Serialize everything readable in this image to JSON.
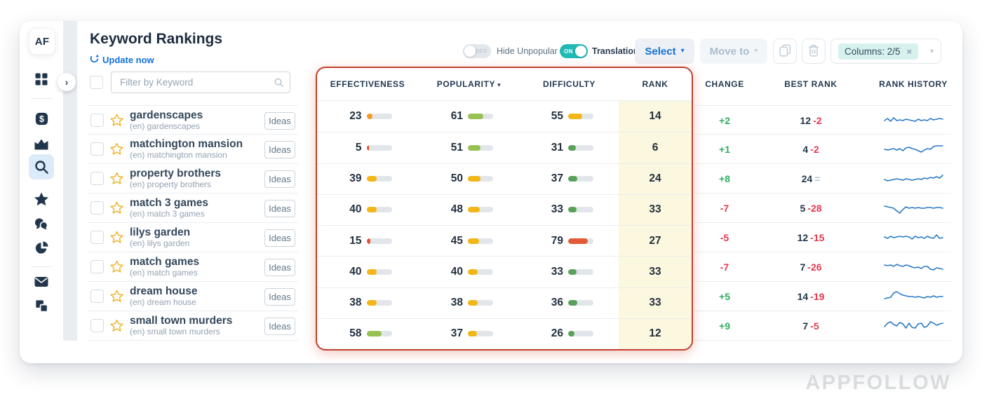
{
  "app": {
    "logo": "AF",
    "watermark": "APPFOLLOW"
  },
  "sidebar": {
    "icons": [
      "grid-icon",
      "revenue-icon",
      "chart-icon",
      "search-icon",
      "star-icon",
      "reviews-icon",
      "pie-icon",
      "mail-icon",
      "integrations-icon"
    ],
    "active_icon": "search-icon"
  },
  "header": {
    "title": "Keyword Rankings",
    "update_label": "Update now"
  },
  "toolbar": {
    "hide_unpopular": {
      "label": "Hide Unpopular",
      "state": "OFF"
    },
    "translation": {
      "label": "Translation",
      "state": "ON"
    },
    "select": {
      "label": "Select"
    },
    "move_to": {
      "label": "Move to"
    },
    "columns": {
      "label": "Columns: 2/5"
    }
  },
  "filter": {
    "placeholder": "Filter by Keyword"
  },
  "colors": {
    "positive": "#2fae5f",
    "negative": "#e5384e",
    "neutral": "#b4bfca",
    "sparkline": "#2b7ac7",
    "rank_highlight": "#fcf7df"
  },
  "table": {
    "columns": [
      "EFFECTIVENESS",
      "POPULARITY",
      "DIFFICULTY",
      "RANK",
      "CHANGE",
      "BEST RANK",
      "RANK HISTORY"
    ],
    "ideas_label": "Ideas",
    "rows": [
      {
        "keyword": "gardenscapes",
        "translation": "(en) gardenscapes",
        "effectiveness": {
          "value": 23,
          "color": "#f49b1f"
        },
        "popularity": {
          "value": 61,
          "color": "#97c153"
        },
        "difficulty": {
          "value": 55,
          "color": "#f2b616"
        },
        "rank": 14,
        "change": {
          "text": "+2",
          "direction": "up"
        },
        "best_rank": {
          "value": 12,
          "delta": "-2",
          "delta_type": "down"
        },
        "spark": [
          13,
          10,
          14,
          9,
          13,
          12,
          13,
          11,
          12,
          13,
          14,
          11,
          13,
          12,
          13,
          10,
          12,
          11,
          10,
          11
        ]
      },
      {
        "keyword": "matchington mansion",
        "translation": "(en) matchington mansion",
        "effectiveness": {
          "value": 5,
          "color": "#e8502f"
        },
        "popularity": {
          "value": 51,
          "color": "#97c153"
        },
        "difficulty": {
          "value": 31,
          "color": "#58a15a"
        },
        "rank": 6,
        "change": {
          "text": "+1",
          "direction": "up"
        },
        "best_rank": {
          "value": 4,
          "delta": "-2",
          "delta_type": "down"
        },
        "spark": [
          13,
          14,
          13,
          12,
          14,
          12,
          15,
          11,
          10,
          12,
          13,
          15,
          17,
          14,
          12,
          13,
          9,
          8,
          8,
          8
        ]
      },
      {
        "keyword": "property brothers",
        "translation": "(en) property brothers",
        "effectiveness": {
          "value": 39,
          "color": "#f2b616"
        },
        "popularity": {
          "value": 50,
          "color": "#f2b616"
        },
        "difficulty": {
          "value": 37,
          "color": "#58a15a"
        },
        "rank": 24,
        "change": {
          "text": "+8",
          "direction": "up"
        },
        "best_rank": {
          "value": 24,
          "delta": "=",
          "delta_type": "same"
        },
        "spark": [
          14,
          16,
          15,
          14,
          13,
          14,
          15,
          13,
          14,
          15,
          14,
          13,
          14,
          12,
          13,
          11,
          12,
          10,
          12,
          8
        ]
      },
      {
        "keyword": "match 3 games",
        "translation": "(en) match 3 games",
        "effectiveness": {
          "value": 40,
          "color": "#f2b616"
        },
        "popularity": {
          "value": 48,
          "color": "#f2b616"
        },
        "difficulty": {
          "value": 33,
          "color": "#58a15a"
        },
        "rank": 33,
        "change": {
          "text": "-7",
          "direction": "down"
        },
        "best_rank": {
          "value": 5,
          "delta": "-28",
          "delta_type": "down"
        },
        "spark": [
          10,
          11,
          12,
          13,
          17,
          20,
          15,
          11,
          13,
          12,
          13,
          12,
          13,
          13,
          12,
          12,
          13,
          12,
          12,
          13
        ]
      },
      {
        "keyword": "lilys garden",
        "translation": "(en) lilys garden",
        "effectiveness": {
          "value": 15,
          "color": "#e8502f"
        },
        "popularity": {
          "value": 45,
          "color": "#f2b616"
        },
        "difficulty": {
          "value": 79,
          "color": "#e25b38"
        },
        "rank": 27,
        "change": {
          "text": "-5",
          "direction": "down"
        },
        "best_rank": {
          "value": 12,
          "delta": "-15",
          "delta_type": "down"
        },
        "spark": [
          12,
          14,
          11,
          13,
          12,
          11,
          12,
          11,
          12,
          15,
          11,
          13,
          12,
          14,
          11,
          13,
          14,
          9,
          14,
          13
        ]
      },
      {
        "keyword": "match games",
        "translation": "(en) match games",
        "effectiveness": {
          "value": 40,
          "color": "#f2b616"
        },
        "popularity": {
          "value": 40,
          "color": "#f2b616"
        },
        "difficulty": {
          "value": 33,
          "color": "#58a15a"
        },
        "rank": 33,
        "change": {
          "text": "-7",
          "direction": "down"
        },
        "best_rank": {
          "value": 7,
          "delta": "-26",
          "delta_type": "down"
        },
        "spark": [
          10,
          11,
          10,
          12,
          9,
          11,
          12,
          10,
          11,
          13,
          14,
          13,
          15,
          12,
          12,
          16,
          17,
          14,
          15,
          16
        ]
      },
      {
        "keyword": "dream house",
        "translation": "(en) dream house",
        "effectiveness": {
          "value": 38,
          "color": "#f2b616"
        },
        "popularity": {
          "value": 38,
          "color": "#f2b616"
        },
        "difficulty": {
          "value": 36,
          "color": "#58a15a"
        },
        "rank": 33,
        "change": {
          "text": "+5",
          "direction": "up"
        },
        "best_rank": {
          "value": 14,
          "delta": "-19",
          "delta_type": "down"
        },
        "spark": [
          16,
          15,
          14,
          8,
          6,
          9,
          11,
          12,
          13,
          13,
          14,
          13,
          14,
          15,
          13,
          14,
          12,
          14,
          13,
          13
        ]
      },
      {
        "keyword": "small town murders",
        "translation": "(en) small town murders",
        "effectiveness": {
          "value": 58,
          "color": "#97c153"
        },
        "popularity": {
          "value": 37,
          "color": "#f2b616"
        },
        "difficulty": {
          "value": 26,
          "color": "#58a15a"
        },
        "rank": 12,
        "change": {
          "text": "+9",
          "direction": "up"
        },
        "best_rank": {
          "value": 7,
          "delta": "-5",
          "delta_type": "down"
        },
        "spark": [
          14,
          9,
          7,
          11,
          13,
          8,
          10,
          16,
          9,
          15,
          16,
          10,
          9,
          15,
          13,
          7,
          9,
          12,
          10,
          9
        ]
      }
    ]
  }
}
